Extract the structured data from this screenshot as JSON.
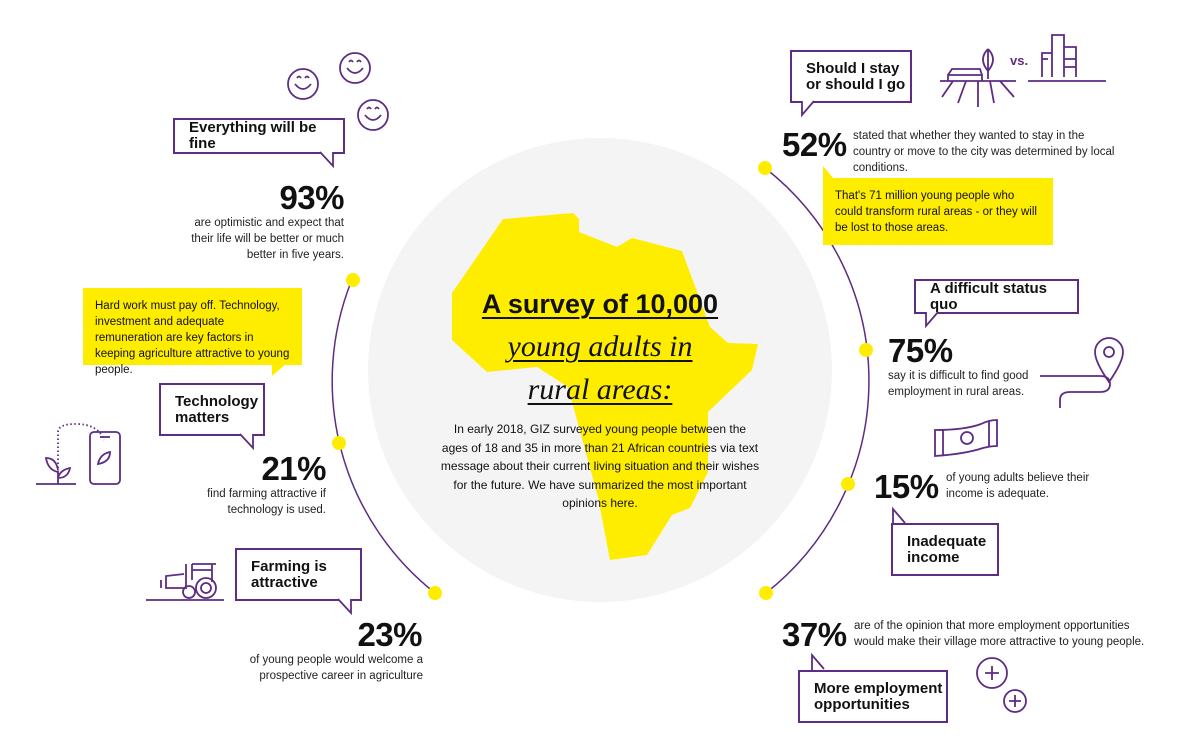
{
  "colors": {
    "accent": "#5c2d82",
    "highlight": "#ffed00",
    "circle": "#f4f4f4"
  },
  "center": {
    "title_line1": "A survey of 10,000",
    "title_line2": "young adults in",
    "title_line3": "rural areas:",
    "intro": "In early 2018, GIZ surveyed young people between the ages of 18 and 35 in more than 21 African countries via text message about their current living situation and their wishes for the future. We have summarized the most important opinions here."
  },
  "stats": [
    {
      "heading": "Everything will be fine",
      "value": "93%",
      "text": "are optimistic and expect that their life will be better or much better in five years.",
      "icon": "smiley-faces-icon"
    },
    {
      "heading": "Technology matters",
      "value": "21%",
      "text": "find farming attractive if technology is used.",
      "icon": "plant-smartphone-icon"
    },
    {
      "heading": "Farming is attractive",
      "value": "23%",
      "text": "of young people would welcome a prospective career in agriculture",
      "icon": "tractor-icon"
    },
    {
      "heading": "Should I stay or should I go",
      "value": "52%",
      "text": "stated that whether they wanted to stay in the country or move to the city was determined by local conditions.",
      "icon": "farm-vs-city-icon",
      "icon_label": "vs."
    },
    {
      "heading": "A difficult status quo",
      "value": "75%",
      "text": "say it is difficult to find good employment in rural areas.",
      "icon": "location-path-icon"
    },
    {
      "heading": "Inadequate income",
      "value": "15%",
      "text": "of young adults believe their income is adequate.",
      "icon": "banknote-icon"
    },
    {
      "heading": "More employment opportunities",
      "value": "37%",
      "text": "are of the opinion that more employment opportunities would make their village more attractive to young people.",
      "icon": "plus-circles-icon"
    }
  ],
  "notes": {
    "agriculture": "Hard work must pay off. Technology, investment and adequate remuneration are key factors in keeping agriculture attractive to young people.",
    "migration": "That's 71 million young people who could transform rural areas - or they will be lost to those areas."
  }
}
